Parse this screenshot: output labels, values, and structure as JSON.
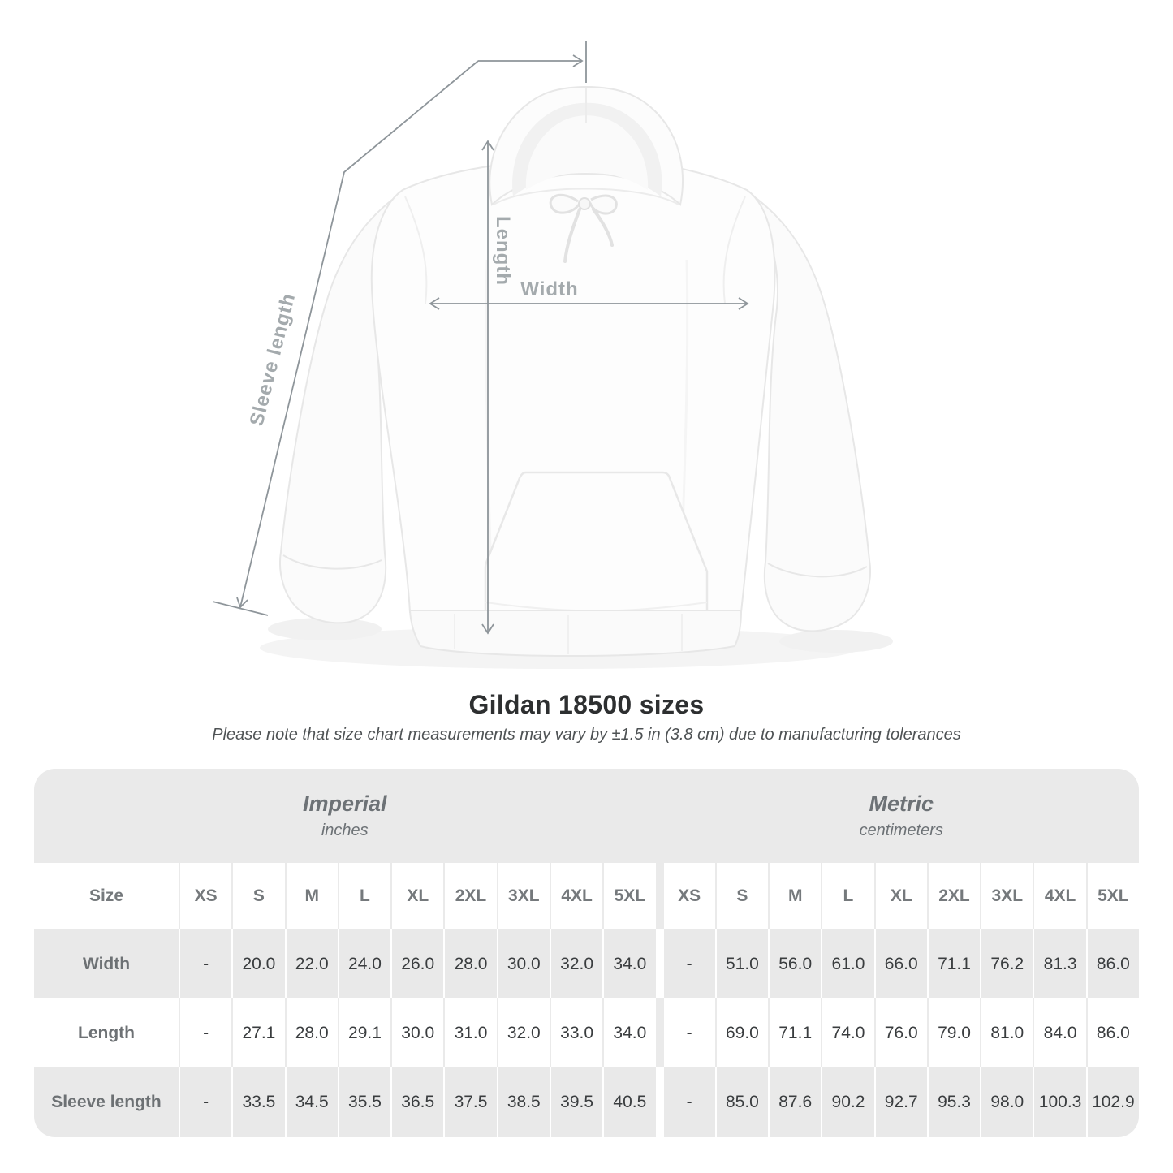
{
  "diagram": {
    "labels": {
      "length": "Length",
      "width": "Width",
      "sleeve_length": "Sleeve length"
    },
    "arrow_color": "#8e959a",
    "label_color": "#a4aaad"
  },
  "chart_data": {
    "type": "table",
    "title": "Gildan 18500 sizes",
    "note": "Please note that size chart measurements may vary by ±1.5 in (3.8 cm) due to manufacturing tolerances",
    "unit_groups": [
      {
        "label": "Imperial",
        "sublabel": "inches"
      },
      {
        "label": "Metric",
        "sublabel": "centimeters"
      }
    ],
    "corner_header": "Size",
    "sizes": [
      "XS",
      "S",
      "M",
      "L",
      "XL",
      "2XL",
      "3XL",
      "4XL",
      "5XL"
    ],
    "rows": [
      {
        "label": "Width",
        "imperial": [
          "-",
          "20.0",
          "22.0",
          "24.0",
          "26.0",
          "28.0",
          "30.0",
          "32.0",
          "34.0"
        ],
        "metric": [
          "-",
          "51.0",
          "56.0",
          "61.0",
          "66.0",
          "71.1",
          "76.2",
          "81.3",
          "86.0"
        ]
      },
      {
        "label": "Length",
        "imperial": [
          "-",
          "27.1",
          "28.0",
          "29.1",
          "30.0",
          "31.0",
          "32.0",
          "33.0",
          "34.0"
        ],
        "metric": [
          "-",
          "69.0",
          "71.1",
          "74.0",
          "76.0",
          "79.0",
          "81.0",
          "84.0",
          "86.0"
        ]
      },
      {
        "label": "Sleeve length",
        "imperial": [
          "-",
          "33.5",
          "34.5",
          "35.5",
          "36.5",
          "37.5",
          "38.5",
          "39.5",
          "40.5"
        ],
        "metric": [
          "-",
          "85.0",
          "87.6",
          "90.2",
          "92.7",
          "95.3",
          "98.0",
          "100.3",
          "102.9"
        ]
      }
    ]
  },
  "colors": {
    "table_bg": "#eaeaea",
    "row_white": "#ffffff",
    "row_gray": "#e9e9e9",
    "header_text": "#75797c",
    "row_label_text": "#6d7174",
    "value_text": "#3a3d3f",
    "title_text": "#2d2f30",
    "subtitle_text": "#4e5254"
  }
}
